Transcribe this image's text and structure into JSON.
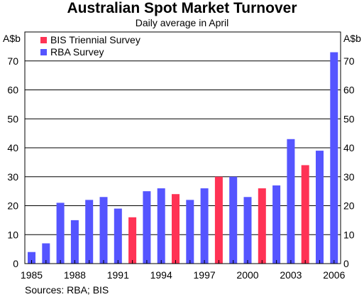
{
  "chart_data": {
    "type": "bar",
    "title": "Australian Spot Market Turnover",
    "subtitle": "Daily average in April",
    "ylabel": "A$b",
    "ylim": [
      0,
      80
    ],
    "yticks": [
      0,
      10,
      20,
      30,
      40,
      50,
      60,
      70
    ],
    "xlim": [
      1985,
      2006
    ],
    "xticks": [
      1985,
      1988,
      1991,
      1994,
      1997,
      2000,
      2003,
      2006
    ],
    "grid": true,
    "legend_position": "top-left",
    "source": "Sources: RBA; BIS",
    "series": [
      {
        "name": "BIS Triennial Survey",
        "color": "#ff3355",
        "x": [
          1992,
          1995,
          1998,
          2001,
          2004
        ],
        "values": [
          16,
          24,
          30,
          26,
          34
        ]
      },
      {
        "name": "RBA Survey",
        "color": "#5555ff",
        "x": [
          1985,
          1986,
          1987,
          1988,
          1989,
          1990,
          1991,
          1993,
          1994,
          1996,
          1997,
          1999,
          2000,
          2002,
          2003,
          2005,
          2006
        ],
        "values": [
          4,
          7,
          21,
          15,
          22,
          23,
          19,
          25,
          26,
          22,
          26,
          30,
          23,
          27,
          43,
          39,
          73
        ]
      }
    ]
  }
}
